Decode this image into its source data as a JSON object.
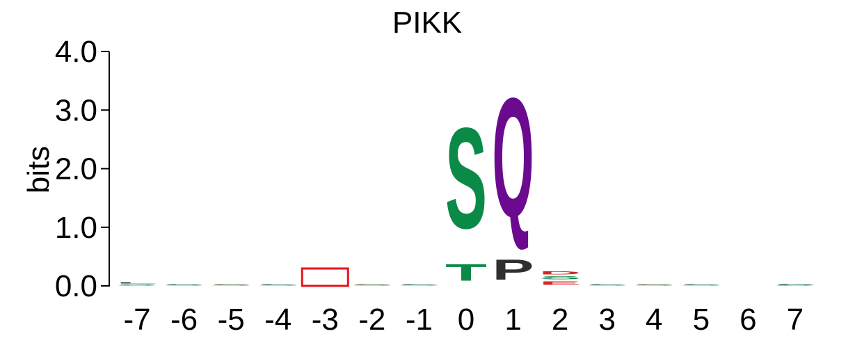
{
  "chart_data": {
    "type": "sequence_logo",
    "title": "PIKK",
    "xlabel": "",
    "ylabel": "bits",
    "ylim": [
      0,
      4.0
    ],
    "y_ticks": [
      "0.0",
      "1.0",
      "2.0",
      "3.0",
      "4.0"
    ],
    "y_tick_values": [
      0,
      1,
      2,
      3,
      4
    ],
    "positions": [
      "-7",
      "-6",
      "-5",
      "-4",
      "-3",
      "-2",
      "-1",
      "0",
      "1",
      "2",
      "3",
      "4",
      "5",
      "6",
      "7"
    ],
    "columns": [
      {
        "position": "-7",
        "stack": [
          {
            "letter": "S",
            "bits": 0.04,
            "color": "#0b8a47"
          },
          {
            "letter": "L",
            "bits": 0.02,
            "color": "#2f2f2f"
          }
        ]
      },
      {
        "position": "-6",
        "stack": [
          {
            "letter": "S",
            "bits": 0.02,
            "color": "#0b8a47"
          },
          {
            "letter": "P",
            "bits": 0.01,
            "color": "#2f2f2f"
          }
        ]
      },
      {
        "position": "-5",
        "stack": [
          {
            "letter": "S",
            "bits": 0.02,
            "color": "#0b8a47"
          },
          {
            "letter": "E",
            "bits": 0.01,
            "color": "#d62728"
          }
        ]
      },
      {
        "position": "-4",
        "stack": [
          {
            "letter": "S",
            "bits": 0.02,
            "color": "#0b8a47"
          },
          {
            "letter": "L",
            "bits": 0.01,
            "color": "#2f2f2f"
          }
        ]
      },
      {
        "position": "-3",
        "stack": []
      },
      {
        "position": "-2",
        "stack": [
          {
            "letter": "S",
            "bits": 0.02,
            "color": "#0b8a47"
          },
          {
            "letter": "E",
            "bits": 0.01,
            "color": "#d62728"
          }
        ]
      },
      {
        "position": "-1",
        "stack": [
          {
            "letter": "S",
            "bits": 0.02,
            "color": "#0b8a47"
          },
          {
            "letter": "L",
            "bits": 0.01,
            "color": "#2f2f2f"
          }
        ]
      },
      {
        "position": "0",
        "stack": [
          {
            "letter": "T",
            "bits": 0.45,
            "color": "#0b8a47"
          },
          {
            "letter": "S",
            "bits": 2.75,
            "color": "#0b8a47"
          }
        ]
      },
      {
        "position": "1",
        "stack": [
          {
            "letter": "P",
            "bits": 0.55,
            "color": "#2f2f2f"
          },
          {
            "letter": "Q",
            "bits": 3.25,
            "color": "#6b0a8f"
          }
        ]
      },
      {
        "position": "2",
        "stack": [
          {
            "letter": "E",
            "bits": 0.1,
            "color": "#d62728"
          },
          {
            "letter": "S",
            "bits": 0.08,
            "color": "#0b8a47"
          },
          {
            "letter": "D",
            "bits": 0.08,
            "color": "#d62728"
          }
        ]
      },
      {
        "position": "3",
        "stack": [
          {
            "letter": "S",
            "bits": 0.02,
            "color": "#0b8a47"
          },
          {
            "letter": "L",
            "bits": 0.01,
            "color": "#2f2f2f"
          }
        ]
      },
      {
        "position": "4",
        "stack": [
          {
            "letter": "S",
            "bits": 0.02,
            "color": "#0b8a47"
          },
          {
            "letter": "E",
            "bits": 0.01,
            "color": "#d62728"
          }
        ]
      },
      {
        "position": "5",
        "stack": [
          {
            "letter": "S",
            "bits": 0.02,
            "color": "#0b8a47"
          },
          {
            "letter": "L",
            "bits": 0.01,
            "color": "#2f2f2f"
          }
        ]
      },
      {
        "position": "6",
        "stack": []
      },
      {
        "position": "7",
        "stack": [
          {
            "letter": "S",
            "bits": 0.03,
            "color": "#0b8a47"
          },
          {
            "letter": "L",
            "bits": 0.01,
            "color": "#2f2f2f"
          }
        ]
      }
    ],
    "highlight": {
      "position": "-3",
      "color": "#e3161b"
    },
    "colors": {
      "green": "#0b8a47",
      "purple": "#6b0a8f",
      "black": "#2f2f2f",
      "red": "#d62728",
      "axis": "#000000"
    }
  }
}
